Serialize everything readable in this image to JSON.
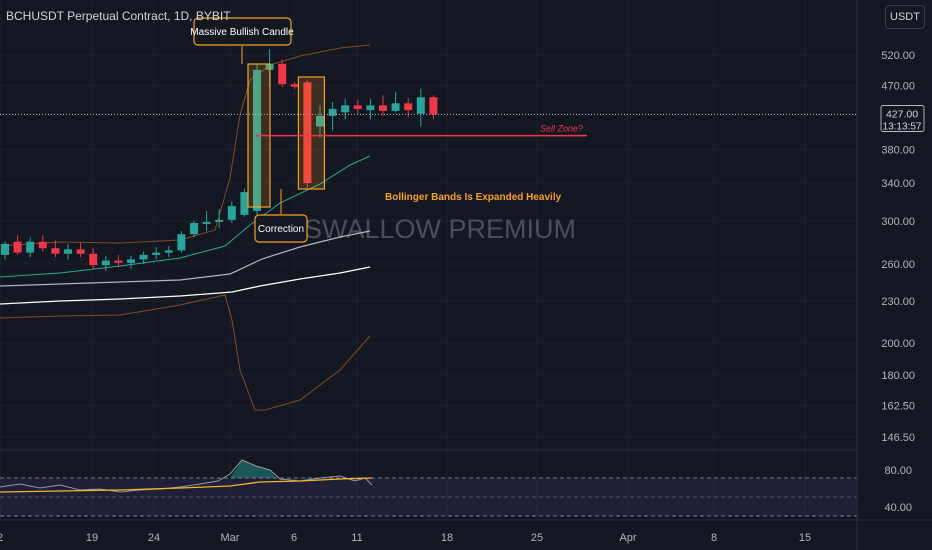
{
  "header": {
    "title": "BCHUSDT Perpetual Contract, 1D, BYBIT",
    "currency": "USDT"
  },
  "price_tag": {
    "price": "427.00",
    "countdown": "13:13:57"
  },
  "watermark": "SWALLOW PREMIUM",
  "annotations": {
    "bullish_candle": "Massive Bullish Candle",
    "correction": "Correction",
    "bands": "Bollinger Bands Is Expanded Heavily",
    "sell_zone": "Sell Zone?"
  },
  "colors": {
    "up": "#26a69a",
    "down": "#f23645",
    "background": "#131722",
    "annotation": "#f7a21b",
    "sell_line": "#f23645",
    "upper_band": "#a1591e",
    "mid_band": "#26a69a",
    "ma_long": "#ffffff",
    "ma_short": "#b2b5be",
    "rsi": "#9598a1",
    "rsi_ma": "#f7b32b"
  },
  "chart_data": {
    "type": "candlestick",
    "x_tick_labels": [
      "2",
      "19",
      "24",
      "Mar",
      "6",
      "11",
      "18",
      "25",
      "Apr",
      "8",
      "15"
    ],
    "y_tick_labels": [
      "520.00",
      "470.00",
      "380.00",
      "340.00",
      "300.00",
      "260.00",
      "230.00",
      "200.00",
      "180.00",
      "162.50",
      "146.50"
    ],
    "scale": "log",
    "candles": [
      {
        "o": 268,
        "h": 280,
        "l": 264,
        "c": 278
      },
      {
        "o": 280,
        "h": 286,
        "l": 268,
        "c": 270
      },
      {
        "o": 270,
        "h": 284,
        "l": 266,
        "c": 280
      },
      {
        "o": 280,
        "h": 286,
        "l": 271,
        "c": 274
      },
      {
        "o": 274,
        "h": 281,
        "l": 266,
        "c": 269
      },
      {
        "o": 269,
        "h": 278,
        "l": 264,
        "c": 273
      },
      {
        "o": 273,
        "h": 279,
        "l": 266,
        "c": 269
      },
      {
        "o": 269,
        "h": 274,
        "l": 256,
        "c": 259
      },
      {
        "o": 259,
        "h": 267,
        "l": 254,
        "c": 263
      },
      {
        "o": 263,
        "h": 268,
        "l": 257,
        "c": 261
      },
      {
        "o": 261,
        "h": 267,
        "l": 256,
        "c": 264
      },
      {
        "o": 264,
        "h": 271,
        "l": 260,
        "c": 268
      },
      {
        "o": 268,
        "h": 275,
        "l": 264,
        "c": 270
      },
      {
        "o": 270,
        "h": 276,
        "l": 266,
        "c": 272
      },
      {
        "o": 272,
        "h": 290,
        "l": 270,
        "c": 287
      },
      {
        "o": 287,
        "h": 300,
        "l": 284,
        "c": 298
      },
      {
        "o": 297,
        "h": 310,
        "l": 290,
        "c": 299
      },
      {
        "o": 299,
        "h": 312,
        "l": 293,
        "c": 301
      },
      {
        "o": 301,
        "h": 320,
        "l": 298,
        "c": 315
      },
      {
        "o": 306,
        "h": 334,
        "l": 304,
        "c": 330
      },
      {
        "o": 310,
        "h": 505,
        "l": 305,
        "c": 495
      },
      {
        "o": 495,
        "h": 530,
        "l": 468,
        "c": 505
      },
      {
        "o": 505,
        "h": 512,
        "l": 468,
        "c": 472
      },
      {
        "o": 472,
        "h": 475,
        "l": 465,
        "c": 468
      },
      {
        "o": 475,
        "h": 478,
        "l": 335,
        "c": 340
      },
      {
        "o": 410,
        "h": 440,
        "l": 395,
        "c": 425
      },
      {
        "o": 425,
        "h": 445,
        "l": 405,
        "c": 435
      },
      {
        "o": 430,
        "h": 450,
        "l": 420,
        "c": 440
      },
      {
        "o": 440,
        "h": 448,
        "l": 428,
        "c": 435
      },
      {
        "o": 433,
        "h": 450,
        "l": 420,
        "c": 440
      },
      {
        "o": 440,
        "h": 455,
        "l": 425,
        "c": 432
      },
      {
        "o": 432,
        "h": 460,
        "l": 430,
        "c": 443
      },
      {
        "o": 443,
        "h": 451,
        "l": 423,
        "c": 433
      },
      {
        "o": 428,
        "h": 465,
        "l": 410,
        "c": 452
      },
      {
        "o": 452,
        "h": 455,
        "l": 420,
        "c": 427
      }
    ],
    "indicators": [
      "Bollinger Bands",
      "Moving Average 1",
      "Moving Average 2",
      "RSI"
    ],
    "rsi_levels": [
      "80.00",
      "40.00"
    ],
    "sell_zone_price": 398
  }
}
